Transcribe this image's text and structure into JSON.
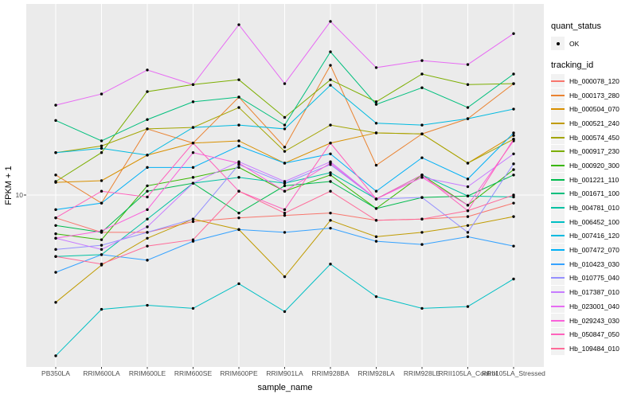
{
  "chart_data": {
    "type": "line",
    "title": "",
    "xlabel": "sample_name",
    "ylabel": "FPKM + 1",
    "y_scale": "log10",
    "ylim": [
      1.7,
      65
    ],
    "y_ticks": [
      10
    ],
    "y_tick_labels": [
      "10"
    ],
    "grid": "major-white-on-gray",
    "legend_position": "right",
    "point_marker": "black-dot",
    "categories": [
      "PB350LA",
      "RRIM600LA",
      "RRIM600LE",
      "RRIM600SE",
      "RRIM600PE",
      "RRIM901LA",
      "RRIM928BA",
      "RRIM928LA",
      "RRIM928LE",
      "RRII105LA_Control",
      "RRII105LA_Stressed"
    ],
    "legend": {
      "quant_status_title": "quant_status",
      "quant_status_items": [
        "OK"
      ],
      "tracking_id_title": "tracking_id"
    },
    "style": {
      "panel_bg": "#EBEBEB",
      "grid_color": "#FFFFFF",
      "point_color": "#000000",
      "tick_label_color": "#4D4D4D",
      "axis_title_color": "#000000",
      "legend_key_bg": "#F2F2F2"
    },
    "series": [
      {
        "name": "Hb_000078_120",
        "color": "#F8766D",
        "values": [
          7.9,
          6.8,
          6.8,
          7.6,
          7.9,
          8.1,
          8.3,
          7.7,
          7.8,
          8.0,
          9.2
        ]
      },
      {
        "name": "Hb_000173_280",
        "color": "#EA8331",
        "values": [
          12.3,
          9.2,
          19.8,
          17.1,
          27.5,
          16.4,
          38.2,
          13.6,
          18.8,
          22.0,
          31.6
        ]
      },
      {
        "name": "Hb_000504_070",
        "color": "#D89000",
        "values": [
          11.4,
          11.6,
          15.1,
          17.1,
          17.5,
          13.9,
          17.1,
          19.0,
          18.8,
          13.9,
          18.5
        ]
      },
      {
        "name": "Hb_000521_240",
        "color": "#C09B00",
        "values": [
          3.3,
          4.85,
          6.4,
          7.8,
          7.0,
          4.3,
          7.7,
          6.5,
          6.8,
          7.3,
          8.0
        ]
      },
      {
        "name": "Hb_000574_450",
        "color": "#A3A500",
        "values": [
          15.5,
          16.6,
          19.8,
          20.1,
          24.7,
          15.7,
          20.6,
          19.0,
          18.8,
          13.9,
          17.8
        ]
      },
      {
        "name": "Hb_000917_230",
        "color": "#7CAE00",
        "values": [
          11.5,
          15.5,
          29.1,
          31.3,
          32.9,
          22.3,
          32.9,
          26.2,
          34.9,
          31.3,
          31.6
        ]
      },
      {
        "name": "Hb_000920_300",
        "color": "#39B600",
        "values": [
          6.7,
          6.3,
          11.0,
          12.0,
          13.3,
          10.4,
          12.3,
          8.7,
          12.3,
          9.0,
          13.0
        ]
      },
      {
        "name": "Hb_001221_110",
        "color": "#00BB4E",
        "values": [
          7.3,
          6.8,
          10.4,
          11.3,
          8.3,
          11.0,
          11.5,
          8.7,
          9.75,
          9.9,
          12.3
        ]
      },
      {
        "name": "Hb_001671_100",
        "color": "#00BF7D",
        "values": [
          21.6,
          17.5,
          21.8,
          26.2,
          27.5,
          20.6,
          43.9,
          25.5,
          30.3,
          24.7,
          34.9
        ]
      },
      {
        "name": "Hb_004781_010",
        "color": "#00C1A3",
        "values": [
          5.3,
          5.4,
          7.8,
          11.3,
          12.0,
          11.3,
          12.6,
          9.6,
          12.3,
          9.9,
          9.8
        ]
      },
      {
        "name": "Hb_006452_100",
        "color": "#00BFC4",
        "values": [
          1.9,
          3.07,
          3.2,
          3.1,
          4.0,
          3.0,
          4.9,
          3.5,
          3.1,
          3.16,
          4.2
        ]
      },
      {
        "name": "Hb_007416_120",
        "color": "#00BAE0",
        "values": [
          15.5,
          16.2,
          15.1,
          20.1,
          20.6,
          19.8,
          31.1,
          21.0,
          20.6,
          22.0,
          24.3
        ]
      },
      {
        "name": "Hb_007472_070",
        "color": "#00B0F6",
        "values": [
          8.6,
          9.2,
          13.3,
          13.3,
          16.6,
          13.9,
          15.3,
          10.4,
          14.7,
          11.8,
          19.0
        ]
      },
      {
        "name": "Hb_010423_030",
        "color": "#35A2FF",
        "values": [
          4.5,
          5.4,
          5.1,
          6.2,
          7.0,
          6.8,
          7.1,
          6.2,
          6.0,
          6.5,
          5.9
        ]
      },
      {
        "name": "Hb_010775_040",
        "color": "#9590FF",
        "values": [
          5.7,
          5.95,
          6.8,
          7.8,
          13.7,
          11.3,
          13.7,
          9.6,
          9.75,
          6.8,
          13.8
        ]
      },
      {
        "name": "Hb_017387_010",
        "color": "#C77CFF",
        "values": [
          6.4,
          5.7,
          7.2,
          11.3,
          14.1,
          11.5,
          14.1,
          9.6,
          12.0,
          10.9,
          15.3
        ]
      },
      {
        "name": "Hb_023001_040",
        "color": "#E76BF3",
        "values": [
          25.3,
          28.4,
          36.4,
          31.3,
          58.1,
          31.6,
          60.1,
          37.3,
          40.1,
          38.5,
          53.0
        ]
      },
      {
        "name": "Hb_029243_030",
        "color": "#FA62DB",
        "values": [
          6.4,
          6.9,
          8.6,
          15.5,
          13.9,
          10.4,
          13.9,
          9.6,
          12.0,
          9.0,
          17.5
        ]
      },
      {
        "name": "Hb_050847_050",
        "color": "#FF62BC",
        "values": [
          7.9,
          10.4,
          9.8,
          17.1,
          10.4,
          8.6,
          17.1,
          9.6,
          12.3,
          8.5,
          17.8
        ]
      },
      {
        "name": "Hb_109484_010",
        "color": "#FF6A98",
        "values": [
          5.3,
          4.9,
          5.9,
          6.3,
          10.4,
          8.3,
          10.4,
          7.7,
          7.8,
          8.5,
          10.0
        ]
      }
    ]
  }
}
